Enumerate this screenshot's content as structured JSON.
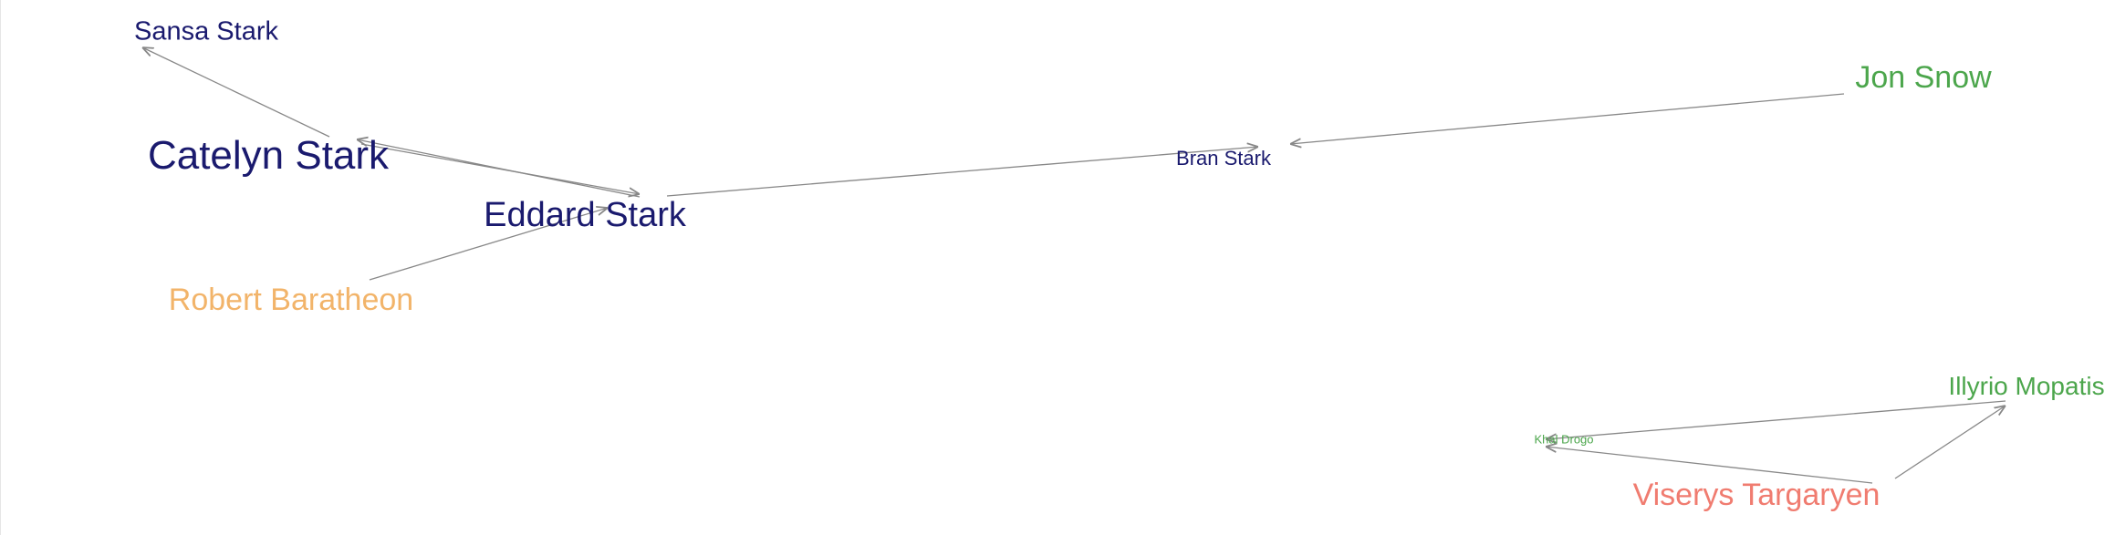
{
  "colors": {
    "stark": "#1a1a6e",
    "baratheon": "#f2b46a",
    "snow": "#4ca64c",
    "targaryen": "#f07c70",
    "edge": "#888888"
  },
  "nodes": [
    {
      "id": "sansa",
      "label": "Sansa Stark",
      "group": "stark"
    },
    {
      "id": "catelyn",
      "label": "Catelyn Stark",
      "group": "stark"
    },
    {
      "id": "eddard",
      "label": "Eddard Stark",
      "group": "stark"
    },
    {
      "id": "robert",
      "label": "Robert Baratheon",
      "group": "baratheon"
    },
    {
      "id": "bran",
      "label": "Bran Stark",
      "group": "stark"
    },
    {
      "id": "jon",
      "label": "Jon Snow",
      "group": "snow"
    },
    {
      "id": "illyrio",
      "label": "Illyrio Mopatis",
      "group": "snow"
    },
    {
      "id": "khal",
      "label": "Khal Drogo",
      "group": "snow"
    },
    {
      "id": "viserys",
      "label": "Viserys Targaryen",
      "group": "targaryen"
    }
  ],
  "edges": [
    {
      "source": "catelyn",
      "target": "sansa"
    },
    {
      "source": "catelyn",
      "target": "eddard"
    },
    {
      "source": "eddard",
      "target": "catelyn"
    },
    {
      "source": "robert",
      "target": "eddard"
    },
    {
      "source": "eddard",
      "target": "bran"
    },
    {
      "source": "jon",
      "target": "bran"
    },
    {
      "source": "illyrio",
      "target": "khal"
    },
    {
      "source": "viserys",
      "target": "khal"
    },
    {
      "source": "viserys",
      "target": "illyrio"
    }
  ]
}
